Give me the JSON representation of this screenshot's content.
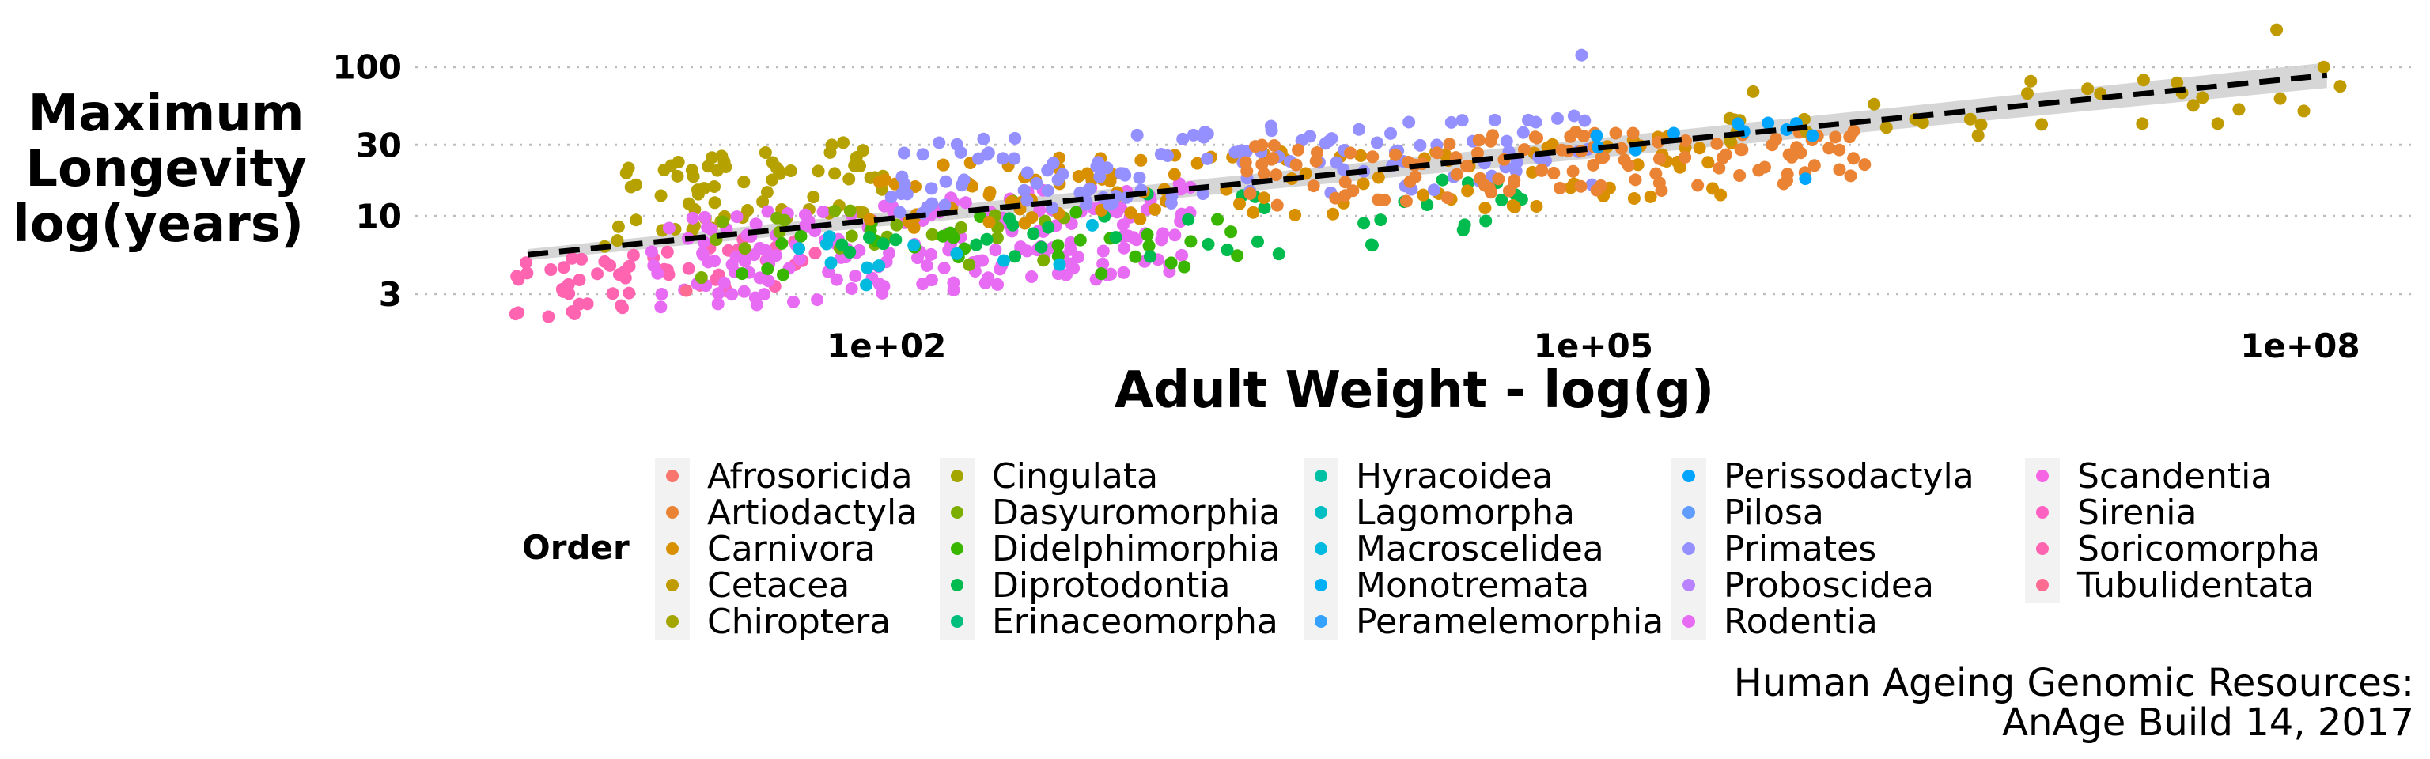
{
  "chart_data": {
    "type": "scatter",
    "xlabel": "Adult Weight - log(g)",
    "ylabel": [
      "Maximum",
      "Longevity",
      "log(years)"
    ],
    "x_scale": "log10",
    "y_scale": "log10",
    "xlim": [
      1,
      300000000
    ],
    "ylim": [
      2,
      200
    ],
    "x_ticks": [
      {
        "value": 100,
        "label": "1e+02"
      },
      {
        "value": 100000,
        "label": "1e+05"
      },
      {
        "value": 100000000,
        "label": "1e+08"
      }
    ],
    "y_ticks": [
      {
        "value": 3,
        "label": "3"
      },
      {
        "value": 10,
        "label": "10"
      },
      {
        "value": 30,
        "label": "30"
      },
      {
        "value": 100,
        "label": "100"
      }
    ],
    "grid": "horizontal dotted",
    "trend_line": {
      "style": "dashed",
      "color": "#000000",
      "band_color": "#cfcfcf",
      "from": [
        3,
        5.5
      ],
      "to": [
        130000000,
        88
      ]
    },
    "legend": {
      "title": "Order",
      "placement": "bottom",
      "entries": [
        {
          "name": "Afrosoricida",
          "color": "#F8766D"
        },
        {
          "name": "Artiodactyla",
          "color": "#EB8335"
        },
        {
          "name": "Carnivora",
          "color": "#D89000"
        },
        {
          "name": "Cetacea",
          "color": "#C09B00"
        },
        {
          "name": "Chiroptera",
          "color": "#A3A500"
        },
        {
          "name": "Cingulata",
          "color": "#A3A500"
        },
        {
          "name": "Dasyuromorphia",
          "color": "#7CAE00"
        },
        {
          "name": "Didelphimorphia",
          "color": "#39B600"
        },
        {
          "name": "Diprotodontia",
          "color": "#00BB4E"
        },
        {
          "name": "Erinaceomorpha",
          "color": "#00BF7D"
        },
        {
          "name": "Hyracoidea",
          "color": "#00C1A3"
        },
        {
          "name": "Lagomorpha",
          "color": "#00BFC4"
        },
        {
          "name": "Macroscelidea",
          "color": "#00BAE0"
        },
        {
          "name": "Monotremata",
          "color": "#00B0F6"
        },
        {
          "name": "Peramelemorphia",
          "color": "#35A2FF"
        },
        {
          "name": "Perissodactyla",
          "color": "#00A5FF"
        },
        {
          "name": "Pilosa",
          "color": "#619CFF"
        },
        {
          "name": "Primates",
          "color": "#9590FF"
        },
        {
          "name": "Proboscidea",
          "color": "#B983FF"
        },
        {
          "name": "Rodentia",
          "color": "#E76BF3"
        },
        {
          "name": "Scandentia",
          "color": "#F564E3"
        },
        {
          "name": "Sirenia",
          "color": "#FF61C3"
        },
        {
          "name": "Soricomorpha",
          "color": "#FF64B0"
        },
        {
          "name": "Tubulidentata",
          "color": "#FF6C91"
        }
      ]
    },
    "point_groups": [
      {
        "order": "Chiroptera",
        "color": "#B5A200",
        "logx": [
          0.8,
          2.0
        ],
        "logy": [
          0.75,
          1.55
        ],
        "n": 70
      },
      {
        "order": "Soricomorpha",
        "color": "#FF64B0",
        "logx": [
          0.4,
          1.7
        ],
        "logy": [
          0.3,
          0.9
        ],
        "n": 55
      },
      {
        "order": "Rodentia",
        "color": "#E76BF3",
        "logx": [
          1.0,
          3.3
        ],
        "logy": [
          0.35,
          1.25
        ],
        "n": 190
      },
      {
        "order": "Dasyuromorphia",
        "color": "#7CAE00",
        "logx": [
          1.2,
          2.8
        ],
        "logy": [
          0.5,
          1.2
        ],
        "n": 25
      },
      {
        "order": "Didelphimorphia",
        "color": "#39B600",
        "logx": [
          1.3,
          3.5
        ],
        "logy": [
          0.45,
          1.1
        ],
        "n": 30
      },
      {
        "order": "Diprotodontia",
        "color": "#00BB4E",
        "logx": [
          1.5,
          4.7
        ],
        "logy": [
          0.6,
          1.3
        ],
        "n": 40
      },
      {
        "order": "Macroscelidea",
        "color": "#00BAE0",
        "logx": [
          1.6,
          2.9
        ],
        "logy": [
          0.5,
          1.0
        ],
        "n": 12
      },
      {
        "order": "Carnivora",
        "color": "#D89000",
        "logx": [
          1.9,
          5.6
        ],
        "logy": [
          0.9,
          1.55
        ],
        "n": 110
      },
      {
        "order": "Primates",
        "color": "#9590FF",
        "logx": [
          2.0,
          5.0
        ],
        "logy": [
          1.0,
          1.7
        ],
        "n": 130
      },
      {
        "order": "Artiodactyla",
        "color": "#EB8335",
        "logx": [
          3.5,
          6.2
        ],
        "logy": [
          1.05,
          1.65
        ],
        "n": 120
      },
      {
        "order": "Cetacea",
        "color": "#C09B00",
        "logx": [
          5.5,
          8.2
        ],
        "logy": [
          1.45,
          2.0
        ],
        "n": 30
      },
      {
        "order": "Perissodactyla",
        "color": "#00A5FF",
        "logx": [
          5.0,
          6.0
        ],
        "logy": [
          1.4,
          1.65
        ],
        "n": 10
      }
    ]
  },
  "caption": [
    "Human Ageing Genomic Resources:",
    "AnAge Build 14, 2017"
  ]
}
